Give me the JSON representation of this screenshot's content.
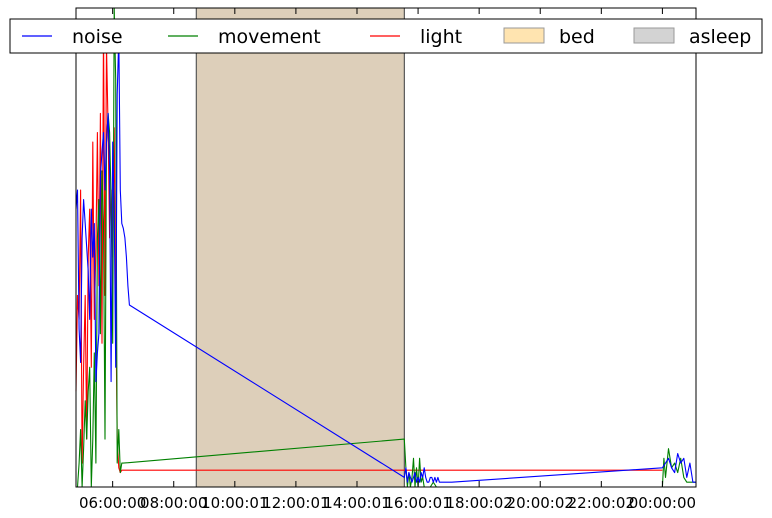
{
  "chart_data": {
    "type": "line",
    "title": "",
    "xlabel": "",
    "ylabel": "",
    "x_unit": "hours since 00:00 on the first day (values above 24 are the following day)",
    "xlim": [
      4.8,
      25.1
    ],
    "ylim": [
      0,
      1
    ],
    "x_tick_values": [
      6,
      8,
      10,
      12,
      14,
      16,
      18,
      20,
      22,
      24
    ],
    "x_tick_labels": [
      "06:00:00",
      "08:00:00",
      "10:00:01",
      "12:00:01",
      "14:00:01",
      "16:00:01",
      "18:00:02",
      "20:00:02",
      "22:00:02",
      "00:00:00"
    ],
    "y_ticks_shown": false,
    "grid": false,
    "legend_position": "top",
    "legend": [
      "noise",
      "movement",
      "light",
      "bed",
      "asleep"
    ],
    "colors": {
      "noise": "#0000ff",
      "movement": "#008000",
      "light": "#ff0000",
      "bed": "#d2a35c",
      "bed_legend": "#ffe4b0",
      "asleep": "#d3d3d3",
      "bed_fill_opacity": 0.55,
      "asleep_fill_opacity": 0.45
    },
    "series": [
      {
        "name": "noise",
        "x": [
          4.8,
          4.85,
          4.9,
          4.95,
          5.0,
          5.05,
          5.1,
          5.15,
          5.2,
          5.25,
          5.3,
          5.35,
          5.4,
          5.45,
          5.5,
          5.55,
          5.6,
          5.65,
          5.7,
          5.75,
          5.8,
          5.85,
          5.9,
          5.95,
          6.0,
          6.05,
          6.1,
          6.15,
          6.2,
          6.25,
          6.3,
          6.35,
          6.4,
          6.45,
          6.5,
          6.55,
          15.55,
          15.6,
          15.65,
          15.7,
          15.75,
          15.8,
          15.85,
          15.9,
          15.95,
          16.0,
          16.05,
          16.1,
          16.15,
          16.2,
          16.25,
          16.3,
          16.35,
          16.4,
          16.45,
          16.5,
          16.55,
          16.6,
          16.65,
          16.7,
          16.8,
          16.9,
          17.0,
          17.1,
          24.0,
          24.1,
          24.2,
          24.3,
          24.4,
          24.5,
          24.6,
          24.7,
          24.8,
          24.9,
          25.0,
          25.1
        ],
        "y": [
          0.58,
          0.62,
          0.33,
          0.26,
          0.52,
          0.6,
          0.55,
          0.5,
          0.45,
          0.35,
          0.58,
          0.48,
          0.55,
          0.22,
          0.28,
          0.32,
          0.65,
          0.7,
          0.74,
          0.62,
          0.72,
          0.78,
          0.66,
          0.22,
          0.72,
          0.58,
          0.25,
          0.82,
          0.94,
          0.62,
          0.55,
          0.54,
          0.52,
          0.48,
          0.42,
          0.38,
          0.02,
          0.04,
          0.01,
          0.03,
          0.02,
          0.01,
          0.02,
          0.03,
          0.01,
          0.02,
          0.01,
          0.03,
          0.02,
          0.04,
          0.02,
          0.01,
          0.01,
          0.02,
          0.02,
          0.01,
          0.02,
          0.01,
          0.02,
          0.01,
          0.01,
          0.01,
          0.01,
          0.01,
          0.04,
          0.05,
          0.06,
          0.04,
          0.03,
          0.07,
          0.05,
          0.06,
          0.02,
          0.05,
          0.01,
          0.01
        ]
      },
      {
        "name": "movement",
        "x": [
          4.8,
          4.85,
          4.9,
          4.95,
          5.0,
          5.05,
          5.1,
          5.15,
          5.2,
          5.25,
          5.3,
          5.35,
          5.4,
          5.45,
          5.5,
          5.55,
          5.6,
          5.65,
          5.7,
          5.75,
          5.8,
          5.85,
          5.9,
          5.95,
          6.0,
          6.05,
          6.1,
          6.15,
          6.2,
          6.25,
          6.3,
          6.35,
          15.55,
          15.6,
          15.65,
          15.7,
          15.75,
          15.8,
          15.85,
          15.9,
          15.95,
          16.0,
          16.05,
          16.1,
          16.15,
          16.2,
          16.3,
          16.4,
          16.5,
          16.6,
          17.0,
          17.5,
          18.0,
          20.0,
          22.0,
          23.9,
          24.0,
          24.05,
          24.1,
          24.2,
          24.3,
          24.4,
          24.5,
          24.6,
          24.7,
          24.8,
          25.0,
          25.1
        ],
        "y": [
          0.0,
          0.0,
          0.05,
          0.12,
          0.0,
          0.08,
          0.18,
          0.1,
          0.2,
          0.25,
          0.0,
          0.1,
          0.28,
          0.05,
          0.52,
          0.6,
          0.32,
          0.66,
          0.55,
          0.1,
          0.72,
          0.78,
          0.74,
          0.6,
          0.3,
          1.0,
          0.85,
          0.05,
          0.12,
          0.03,
          0.05,
          0.05,
          0.1,
          0.04,
          0.0,
          0.03,
          0.0,
          0.02,
          0.06,
          0.0,
          0.04,
          0.0,
          0.06,
          0.01,
          0.02,
          0.0,
          0.0,
          0.0,
          0.01,
          0.0,
          0.0,
          0.0,
          0.0,
          0.0,
          0.0,
          0.0,
          0.0,
          0.06,
          0.02,
          0.08,
          0.04,
          0.05,
          0.03,
          0.06,
          0.02,
          0.01,
          0.01,
          0.01
        ]
      },
      {
        "name": "light",
        "x": [
          4.8,
          4.85,
          4.9,
          4.95,
          5.0,
          5.05,
          5.1,
          5.15,
          5.2,
          5.25,
          5.3,
          5.35,
          5.4,
          5.45,
          5.5,
          5.55,
          5.6,
          5.65,
          5.7,
          5.75,
          5.8,
          5.85,
          5.9,
          5.95,
          6.0,
          6.05,
          6.1,
          6.15,
          6.2,
          6.25,
          6.3,
          15.55,
          24.0
        ],
        "y": [
          0.2,
          0.4,
          0.35,
          0.62,
          0.05,
          0.25,
          0.4,
          0.1,
          0.48,
          0.58,
          0.25,
          0.72,
          0.35,
          0.5,
          0.74,
          0.42,
          0.78,
          0.3,
          0.96,
          0.4,
          0.92,
          0.75,
          0.52,
          0.62,
          0.48,
          0.75,
          0.4,
          0.1,
          0.04,
          0.03,
          0.035,
          0.035,
          0.035
        ]
      }
    ],
    "spans": [
      {
        "name": "bed",
        "x": [
          8.74,
          15.55
        ]
      },
      {
        "name": "asleep",
        "x": [
          8.74,
          15.55
        ]
      }
    ]
  }
}
